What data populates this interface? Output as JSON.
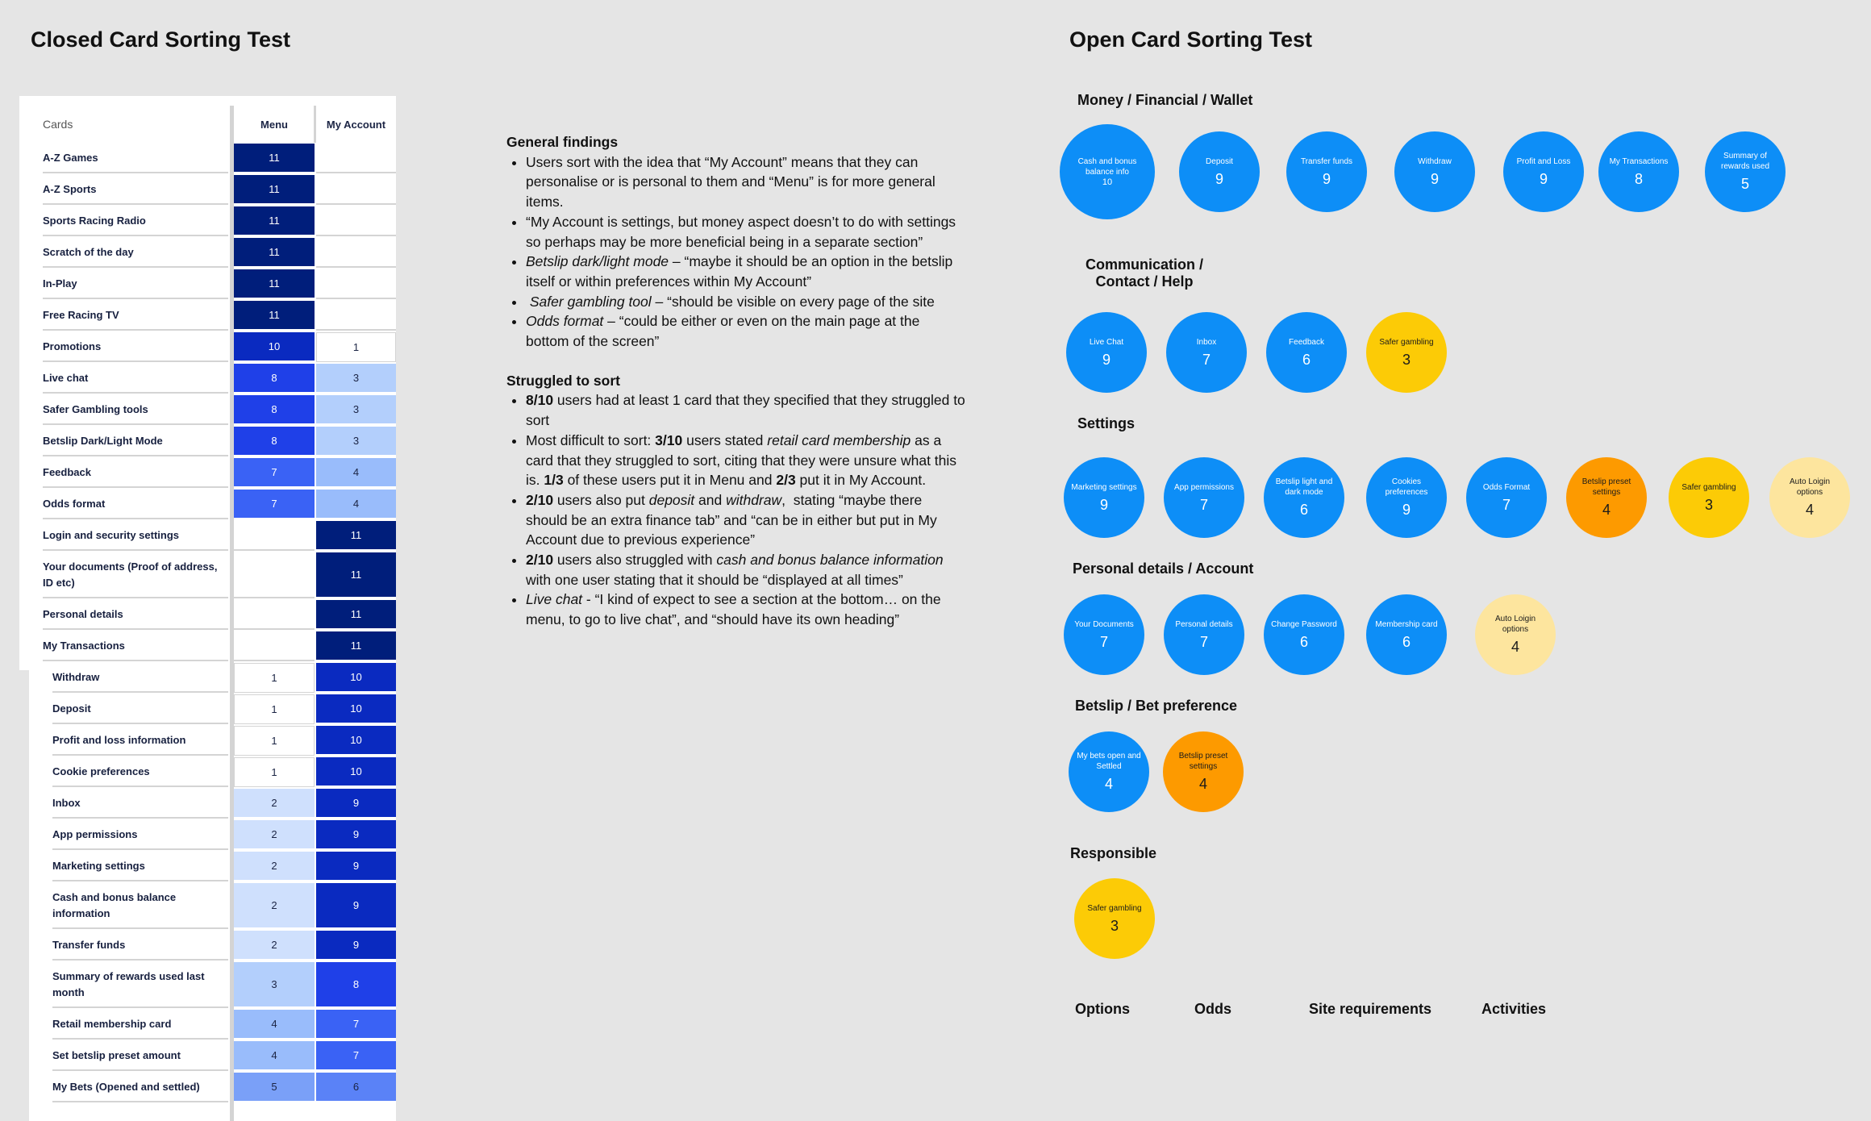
{
  "closed": {
    "title": "Closed Card Sorting Test",
    "columns": [
      "Cards",
      "Menu",
      "My Account"
    ]
  },
  "open": {
    "title": "Open Card Sorting Test"
  },
  "findings": {
    "general_heading": "General findings",
    "general_items": [
      "Users sort with the idea that “My Account” means that they can personalise or is personal to them and “Menu” is for more general items.",
      "“My Account is settings, but money aspect doesn’t to do with settings so perhaps may be more beneficial being in a separate section”",
      "<i>Betslip dark/light mode</i> – “maybe it should be an option in the betslip itself or within preferences within My Account”",
      "&nbsp;<i>Safer gambling tool</i> – “should be visible on every page of the site",
      "<i>Odds format</i> – “could be either or even on the main page at the bottom of the screen”"
    ],
    "struggled_heading": "Struggled to sort",
    "struggled_items": [
      "<b>8/10</b> users had at least 1 card that they specified that they struggled to sort",
      "Most difficult to sort: <b>3/10</b> users stated <i>retail card membership</i> as a card that they struggled to sort, citing that they were unsure what this is. <b>1/3</b> of these users put it in Menu and <b>2/3</b> put it in My Account.",
      "<b>2/10</b> users also put <i>deposit</i> and <i>withdraw</i>,&nbsp; stating “maybe there should be an extra finance tab” and “can be in either but put in My Account due to previous experience”",
      "<b>2/10</b> users also struggled with <i>cash and bonus balance information</i> with one user stating that it should be “displayed at all times”",
      "<i>Live chat</i> - “I kind of expect to see a section at the bottom… on the menu, to go to live chat”, and “should have its own heading”"
    ]
  },
  "chart_data": [
    {
      "type": "table",
      "title": "Closed Card Sorting Test",
      "columns": [
        "Cards",
        "Menu",
        "My Account"
      ],
      "rows": [
        {
          "card": "A-Z Games",
          "menu": 11,
          "account": null
        },
        {
          "card": "A-Z Sports",
          "menu": 11,
          "account": null
        },
        {
          "card": "Sports Racing Radio",
          "menu": 11,
          "account": null
        },
        {
          "card": "Scratch of the day",
          "menu": 11,
          "account": null
        },
        {
          "card": "In-Play",
          "menu": 11,
          "account": null
        },
        {
          "card": "Free Racing TV",
          "menu": 11,
          "account": null
        },
        {
          "card": "Promotions",
          "menu": 10,
          "account": 1
        },
        {
          "card": "Live chat",
          "menu": 8,
          "account": 3
        },
        {
          "card": "Safer Gambling tools",
          "menu": 8,
          "account": 3
        },
        {
          "card": "Betslip Dark/Light Mode",
          "menu": 8,
          "account": 3
        },
        {
          "card": "Feedback",
          "menu": 7,
          "account": 4
        },
        {
          "card": "Odds format",
          "menu": 7,
          "account": 4
        },
        {
          "card": "Login and security settings",
          "menu": null,
          "account": 11
        },
        {
          "card": "Your documents (Proof of address, ID etc)",
          "menu": null,
          "account": 11
        },
        {
          "card": "Personal details",
          "menu": null,
          "account": 11
        },
        {
          "card": "My Transactions",
          "menu": null,
          "account": 11
        },
        {
          "card": "Withdraw",
          "menu": 1,
          "account": 10
        },
        {
          "card": "Deposit",
          "menu": 1,
          "account": 10
        },
        {
          "card": "Profit and loss information",
          "menu": 1,
          "account": 10
        },
        {
          "card": "Cookie preferences",
          "menu": 1,
          "account": 10
        },
        {
          "card": "Inbox",
          "menu": 2,
          "account": 9
        },
        {
          "card": "App permissions",
          "menu": 2,
          "account": 9
        },
        {
          "card": "Marketing settings",
          "menu": 2,
          "account": 9
        },
        {
          "card": "Cash and bonus balance information",
          "menu": 2,
          "account": 9
        },
        {
          "card": "Transfer funds",
          "menu": 2,
          "account": 9
        },
        {
          "card": "Summary of rewards used last month",
          "menu": 3,
          "account": 8
        },
        {
          "card": "Retail membership card",
          "menu": 4,
          "account": 7
        },
        {
          "card": "Set betslip preset amount",
          "menu": 4,
          "account": 7
        },
        {
          "card": "My Bets (Opened and settled)",
          "menu": 5,
          "account": 6
        }
      ],
      "colors": {
        "11": "#001e7b",
        "10": "#0a2ac0",
        "9": "#0a2ac0",
        "8": "#1f40e8",
        "7": "#3a62f5",
        "6": "#5a82f7",
        "5": "#7aa0f8",
        "4": "#99bcfb",
        "3": "#b3cffc",
        "2": "#cfe0fd",
        "1": "#ffffff"
      }
    },
    {
      "type": "table",
      "title": "Open Card Sorting Test",
      "groups": [
        {
          "name": "Money / Financial / Wallet",
          "cards": [
            {
              "label": "Cash and bonus balance info",
              "value": 10,
              "color": "blue"
            },
            {
              "label": "Deposit",
              "value": 9,
              "color": "blue"
            },
            {
              "label": "Transfer funds",
              "value": 9,
              "color": "blue"
            },
            {
              "label": "Withdraw",
              "value": 9,
              "color": "blue"
            },
            {
              "label": "Profit and Loss",
              "value": 9,
              "color": "blue"
            },
            {
              "label": "My Transactions",
              "value": 8,
              "color": "blue"
            },
            {
              "label": "Summary of rewards used",
              "value": 5,
              "color": "blue"
            }
          ]
        },
        {
          "name": "Communication / Contact / Help",
          "cards": [
            {
              "label": "Live Chat",
              "value": 9,
              "color": "blue"
            },
            {
              "label": "Inbox",
              "value": 7,
              "color": "blue"
            },
            {
              "label": "Feedback",
              "value": 6,
              "color": "blue"
            },
            {
              "label": "Safer gambling",
              "value": 3,
              "color": "yellow"
            }
          ]
        },
        {
          "name": "Settings",
          "cards": [
            {
              "label": "Marketing settings",
              "value": 9,
              "color": "blue"
            },
            {
              "label": "App permissions",
              "value": 7,
              "color": "blue"
            },
            {
              "label": "Betslip light and dark mode",
              "value": 6,
              "color": "blue"
            },
            {
              "label": "Cookies preferences",
              "value": 9,
              "color": "blue"
            },
            {
              "label": "Odds Format",
              "value": 7,
              "color": "blue"
            },
            {
              "label": "Betslip preset settings",
              "value": 4,
              "color": "orange"
            },
            {
              "label": "Safer gambling",
              "value": 3,
              "color": "yellow"
            },
            {
              "label": "Auto Loigin options",
              "value": 4,
              "color": "lightyellow"
            }
          ]
        },
        {
          "name": "Personal details / Account",
          "cards": [
            {
              "label": "Your Documents",
              "value": 7,
              "color": "blue"
            },
            {
              "label": "Personal details",
              "value": 7,
              "color": "blue"
            },
            {
              "label": "Change Password",
              "value": 6,
              "color": "blue"
            },
            {
              "label": "Membership card",
              "value": 6,
              "color": "blue"
            },
            {
              "label": "Auto Loigin options",
              "value": 4,
              "color": "lightyellow"
            }
          ]
        },
        {
          "name": "Betslip / Bet preference",
          "cards": [
            {
              "label": "My bets open and Settled",
              "value": 4,
              "color": "blue"
            },
            {
              "label": "Betslip preset settings",
              "value": 4,
              "color": "orange"
            }
          ]
        },
        {
          "name": "Responsible",
          "cards": [
            {
              "label": "Safer gambling",
              "value": 3,
              "color": "yellow"
            }
          ]
        }
      ],
      "empty_groups": [
        "Options",
        "Odds",
        "Site requirements",
        "Activities"
      ]
    }
  ]
}
